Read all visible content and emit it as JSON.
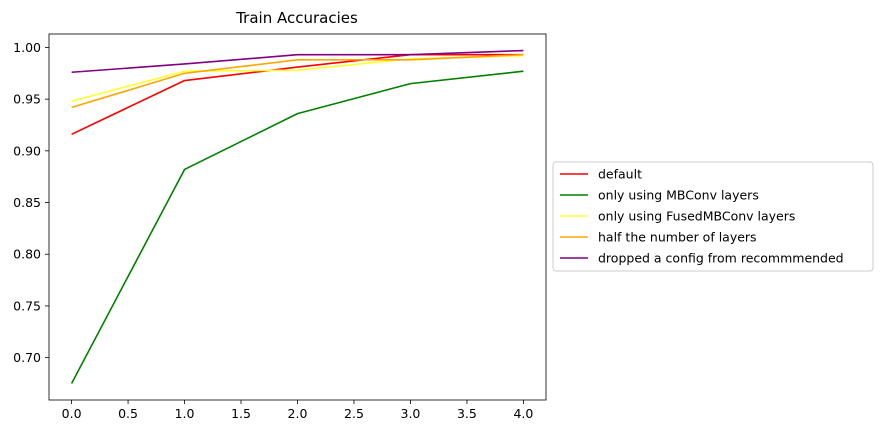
{
  "chart_data": {
    "type": "line",
    "title": "Train Accuracies",
    "xlabel": "",
    "ylabel": "",
    "x": [
      0,
      1,
      2,
      3,
      4
    ],
    "xlim": [
      -0.2,
      4.2
    ],
    "ylim": [
      0.659,
      1.013
    ],
    "xticks": [
      0.0,
      0.5,
      1.0,
      1.5,
      2.0,
      2.5,
      3.0,
      3.5,
      4.0
    ],
    "xtick_labels": [
      "0.0",
      "0.5",
      "1.0",
      "1.5",
      "2.0",
      "2.5",
      "3.0",
      "3.5",
      "4.0"
    ],
    "yticks": [
      0.7,
      0.75,
      0.8,
      0.85,
      0.9,
      0.95,
      1.0
    ],
    "ytick_labels": [
      "0.70",
      "0.75",
      "0.80",
      "0.85",
      "0.90",
      "0.95",
      "1.00"
    ],
    "grid": false,
    "legend_position": "outside right, centered",
    "series": [
      {
        "name": "default",
        "color": "#ff0000",
        "values": [
          0.916,
          0.968,
          0.981,
          0.993,
          0.993
        ]
      },
      {
        "name": "only using MBConv layers",
        "color": "#008000",
        "values": [
          0.675,
          0.882,
          0.936,
          0.965,
          0.977
        ]
      },
      {
        "name": "only using FusedMBConv layers",
        "color": "#ffff33",
        "values": [
          0.948,
          0.977,
          0.978,
          0.989,
          0.992
        ]
      },
      {
        "name": "half the number of layers",
        "color": "#ffa500",
        "values": [
          0.942,
          0.975,
          0.988,
          0.988,
          0.993
        ]
      },
      {
        "name": "dropped a config from recommmended",
        "color": "#800080",
        "values": [
          0.976,
          0.984,
          0.993,
          0.993,
          0.997
        ]
      }
    ]
  }
}
